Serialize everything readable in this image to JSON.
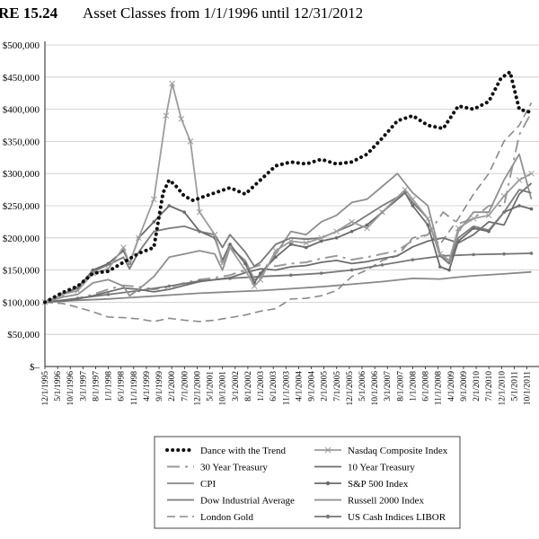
{
  "figure": {
    "label": "RE 15.24",
    "title": "Asset Classes from 1/1/1996 until 12/31/2012"
  },
  "chart_data": {
    "type": "line",
    "title": "Asset Classes from 1/1/1996 until 12/31/2012",
    "xlabel": "",
    "ylabel": "",
    "ylim": [
      0,
      500000
    ],
    "y_ticks": [
      "$–",
      "$50,000",
      "$100,000",
      "$150,000",
      "$200,000",
      "$250,000",
      "$300,000",
      "$350,000",
      "$400,000",
      "$450,000",
      "$500,000"
    ],
    "x_ticks": [
      "12/1/1995",
      "5/1/1996",
      "10/1/1996",
      "3/1/1997",
      "8/1/1997",
      "1/1/1998",
      "6/1/1998",
      "11/1/1998",
      "4/1/1999",
      "9/1/1999",
      "2/1/2000",
      "7/1/2000",
      "12/1/2000",
      "5/1/2001",
      "10/1/2001",
      "3/1/2002",
      "8/1/2002",
      "1/1/2003",
      "6/1/2003",
      "11/1/2003",
      "4/1/2004",
      "9/1/2004",
      "2/1/2005",
      "7/1/2005",
      "12/1/2005",
      "5/1/2006",
      "10/1/2006",
      "3/1/2007",
      "8/1/2007",
      "1/1/2008",
      "6/1/2008",
      "11/1/2008",
      "4/1/2009",
      "9/1/2009",
      "2/1/2010",
      "7/1/2010",
      "12/1/2010",
      "5/1/2011",
      "10/1/2011"
    ],
    "grid": true,
    "legend_position": "bottom",
    "series": [
      {
        "name": "Dance with the Trend",
        "style": "dotted",
        "color": "#111111",
        "x": [
          1995.92,
          1996.5,
          1997.0,
          1997.5,
          1998.0,
          1998.5,
          1999.0,
          1999.5,
          1999.8,
          2000.0,
          2000.2,
          2000.5,
          2000.8,
          2001.0,
          2001.5,
          2002.0,
          2002.5,
          2003.0,
          2003.5,
          2004.0,
          2004.5,
          2005.0,
          2005.5,
          2006.0,
          2006.5,
          2007.0,
          2007.5,
          2008.0,
          2008.5,
          2009.0,
          2009.5,
          2010.0,
          2010.5,
          2010.9,
          2011.2,
          2011.5,
          2011.9
        ],
        "y": [
          100000,
          115000,
          125000,
          145000,
          148000,
          162000,
          176000,
          185000,
          270000,
          290000,
          282000,
          265000,
          258000,
          262000,
          270000,
          278000,
          268000,
          290000,
          312000,
          318000,
          315000,
          322000,
          315000,
          318000,
          330000,
          355000,
          382000,
          390000,
          375000,
          370000,
          405000,
          400000,
          412000,
          448000,
          458000,
          400000,
          395000
        ]
      },
      {
        "name": "30 Year Treasury",
        "style": "longdash",
        "color": "#9a9a9a",
        "x": [
          1995.92,
          1996.5,
          1997.0,
          1997.5,
          1998.0,
          1998.5,
          1999.0,
          1999.5,
          2000.0,
          2000.5,
          2001.0,
          2001.5,
          2002.0,
          2002.5,
          2003.0,
          2003.5,
          2004.0,
          2004.5,
          2005.0,
          2005.5,
          2006.0,
          2006.5,
          2007.0,
          2007.5,
          2008.0,
          2008.5,
          2009.0,
          2009.5,
          2010.0,
          2010.5,
          2011.0,
          2011.5,
          2011.9
        ],
        "y": [
          100000,
          103000,
          106000,
          112000,
          120000,
          126000,
          124000,
          120000,
          123000,
          130000,
          135000,
          138000,
          142000,
          150000,
          158000,
          156000,
          160000,
          162000,
          168000,
          172000,
          166000,
          170000,
          175000,
          180000,
          196000,
          205000,
          240000,
          222000,
          230000,
          250000,
          250000,
          360000,
          395000
        ]
      },
      {
        "name": "CPI",
        "style": "solid",
        "color": "#888888",
        "x": [
          1995.92,
          1997.0,
          1998.0,
          1999.0,
          2000.0,
          2001.0,
          2002.0,
          2003.0,
          2004.0,
          2005.0,
          2006.0,
          2007.0,
          2008.0,
          2008.9,
          2009.5,
          2010.0,
          2011.0,
          2011.9
        ],
        "y": [
          100000,
          103000,
          105000,
          108000,
          111000,
          114000,
          116000,
          118000,
          121000,
          124000,
          128000,
          132000,
          137000,
          136000,
          139000,
          141000,
          144000,
          147000
        ]
      },
      {
        "name": "Dow Industrial Average",
        "style": "solid",
        "color": "#7a7a7a",
        "x": [
          1995.92,
          1996.5,
          1997.0,
          1997.5,
          1998.0,
          1998.5,
          1998.7,
          1999.0,
          1999.5,
          2000.0,
          2000.5,
          2001.0,
          2001.5,
          2001.75,
          2002.0,
          2002.5,
          2002.8,
          2003.0,
          2003.5,
          2004.0,
          2004.5,
          2005.0,
          2005.5,
          2006.0,
          2006.5,
          2007.0,
          2007.75,
          2008.0,
          2008.5,
          2008.9,
          2009.2,
          2009.5,
          2010.0,
          2010.5,
          2011.0,
          2011.5,
          2011.9
        ],
        "y": [
          100000,
          112000,
          124000,
          148000,
          158000,
          170000,
          152000,
          178000,
          210000,
          215000,
          218000,
          210000,
          205000,
          185000,
          205000,
          178000,
          156000,
          162000,
          190000,
          200000,
          198000,
          200000,
          210000,
          220000,
          235000,
          250000,
          270000,
          255000,
          230000,
          172000,
          160000,
          200000,
          218000,
          212000,
          240000,
          275000,
          270000
        ]
      },
      {
        "name": "London Gold",
        "style": "dashed",
        "color": "#8a8a8a",
        "x": [
          1995.92,
          1996.5,
          1997.0,
          1997.5,
          1998.0,
          1998.5,
          1999.0,
          1999.5,
          2000.0,
          2000.5,
          2001.0,
          2001.5,
          2002.0,
          2002.5,
          2003.0,
          2003.5,
          2004.0,
          2004.5,
          2005.0,
          2005.5,
          2006.0,
          2006.5,
          2007.0,
          2007.5,
          2008.0,
          2008.5,
          2008.9,
          2009.5,
          2010.0,
          2010.5,
          2011.0,
          2011.5,
          2011.9
        ],
        "y": [
          100000,
          98000,
          92000,
          85000,
          77000,
          76000,
          74000,
          70000,
          75000,
          72000,
          70000,
          72000,
          76000,
          80000,
          86000,
          90000,
          105000,
          106000,
          110000,
          118000,
          140000,
          150000,
          165000,
          172000,
          200000,
          205000,
          190000,
          230000,
          268000,
          300000,
          350000,
          375000,
          410000
        ]
      },
      {
        "name": "Nasdaq Composite Index",
        "style": "solid-x",
        "color": "#9c9c9c",
        "x": [
          1995.92,
          1996.5,
          1997.0,
          1997.5,
          1998.0,
          1998.5,
          1998.7,
          1999.0,
          1999.5,
          1999.9,
          2000.1,
          2000.4,
          2000.7,
          2001.0,
          2001.5,
          2001.75,
          2002.0,
          2002.5,
          2002.8,
          2003.0,
          2003.5,
          2004.0,
          2004.5,
          2005.0,
          2005.5,
          2006.0,
          2006.5,
          2007.0,
          2007.75,
          2008.0,
          2008.5,
          2008.9,
          2009.2,
          2009.5,
          2010.0,
          2010.5,
          2011.0,
          2011.5,
          2011.9
        ],
        "y": [
          100000,
          112000,
          118000,
          145000,
          152000,
          185000,
          160000,
          200000,
          260000,
          390000,
          440000,
          385000,
          350000,
          240000,
          205000,
          160000,
          185000,
          150000,
          125000,
          135000,
          180000,
          195000,
          192000,
          200000,
          210000,
          225000,
          215000,
          240000,
          275000,
          260000,
          230000,
          175000,
          165000,
          215000,
          230000,
          235000,
          265000,
          290000,
          300000
        ]
      },
      {
        "name": "10 Year Treasury",
        "style": "solid",
        "color": "#6e6e6e",
        "x": [
          1995.92,
          1996.5,
          1997.0,
          1997.5,
          1998.0,
          1998.5,
          1999.0,
          1999.5,
          2000.0,
          2000.5,
          2001.0,
          2001.5,
          2002.0,
          2002.5,
          2003.0,
          2003.5,
          2004.0,
          2004.5,
          2005.0,
          2005.5,
          2006.0,
          2006.5,
          2007.0,
          2007.5,
          2008.0,
          2008.5,
          2009.0,
          2009.5,
          2010.0,
          2010.5,
          2011.0,
          2011.5,
          2011.9
        ],
        "y": [
          100000,
          102000,
          105000,
          110000,
          116000,
          122000,
          120000,
          116000,
          120000,
          126000,
          132000,
          135000,
          138000,
          146000,
          152000,
          150000,
          155000,
          157000,
          162000,
          165000,
          160000,
          163000,
          168000,
          172000,
          186000,
          195000,
          200000,
          192000,
          205000,
          225000,
          220000,
          268000,
          285000
        ]
      },
      {
        "name": "S&P 500 Index",
        "style": "solid-dot",
        "color": "#6a6a6a",
        "x": [
          1995.92,
          1996.5,
          1997.0,
          1997.5,
          1998.0,
          1998.5,
          1998.7,
          1999.0,
          1999.5,
          2000.0,
          2000.5,
          2001.0,
          2001.5,
          2001.75,
          2002.0,
          2002.5,
          2002.8,
          2003.0,
          2003.5,
          2004.0,
          2004.5,
          2005.0,
          2005.5,
          2006.0,
          2006.5,
          2007.0,
          2007.75,
          2008.0,
          2008.5,
          2008.9,
          2009.2,
          2009.5,
          2010.0,
          2010.5,
          2011.0,
          2011.5,
          2011.9
        ],
        "y": [
          100000,
          112000,
          122000,
          150000,
          160000,
          180000,
          160000,
          200000,
          225000,
          250000,
          240000,
          210000,
          200000,
          165000,
          190000,
          160000,
          130000,
          145000,
          170000,
          190000,
          185000,
          195000,
          200000,
          210000,
          220000,
          240000,
          270000,
          250000,
          220000,
          155000,
          150000,
          195000,
          215000,
          210000,
          240000,
          250000,
          245000
        ]
      },
      {
        "name": "Russell 2000 Index",
        "style": "solid",
        "color": "#8f8f8f",
        "x": [
          1995.92,
          1996.5,
          1997.0,
          1997.5,
          1998.0,
          1998.5,
          1998.7,
          1999.0,
          1999.5,
          2000.0,
          2000.5,
          2001.0,
          2001.5,
          2001.75,
          2002.0,
          2002.5,
          2002.8,
          2003.0,
          2003.5,
          2004.0,
          2004.5,
          2005.0,
          2005.5,
          2006.0,
          2006.5,
          2007.0,
          2007.5,
          2008.0,
          2008.5,
          2008.9,
          2009.2,
          2009.5,
          2010.0,
          2010.5,
          2011.0,
          2011.5,
          2011.9
        ],
        "y": [
          100000,
          108000,
          112000,
          130000,
          135000,
          125000,
          110000,
          120000,
          140000,
          170000,
          175000,
          180000,
          175000,
          150000,
          185000,
          165000,
          135000,
          140000,
          175000,
          210000,
          205000,
          225000,
          235000,
          255000,
          260000,
          280000,
          300000,
          270000,
          250000,
          175000,
          160000,
          210000,
          240000,
          240000,
          290000,
          330000,
          260000
        ]
      },
      {
        "name": "US Cash Indices LIBOR",
        "style": "solid-dot",
        "color": "#777777",
        "x": [
          1995.92,
          1997.0,
          1998.0,
          1999.0,
          2000.0,
          2001.0,
          2002.0,
          2003.0,
          2004.0,
          2005.0,
          2006.0,
          2007.0,
          2008.0,
          2009.0,
          2010.0,
          2011.0,
          2011.9
        ],
        "y": [
          100000,
          106000,
          112000,
          118000,
          125000,
          133000,
          137000,
          140000,
          142000,
          145000,
          150000,
          158000,
          166000,
          172000,
          174000,
          175000,
          176000
        ]
      }
    ]
  }
}
